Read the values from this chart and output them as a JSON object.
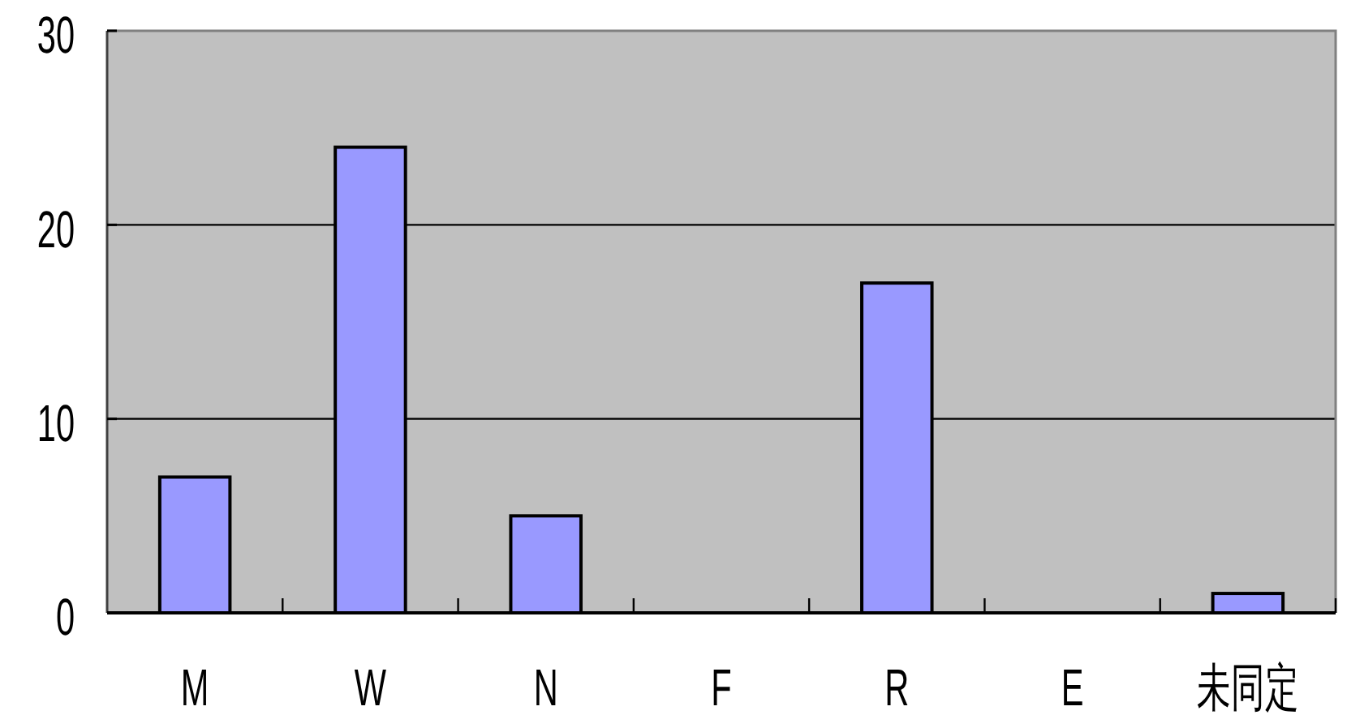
{
  "chart_data": {
    "type": "bar",
    "categories": [
      "M",
      "W",
      "N",
      "F",
      "R",
      "E",
      "未同定"
    ],
    "values": [
      7,
      24,
      5,
      0,
      17,
      0,
      1
    ],
    "color": "#9999ff",
    "ylim": [
      0,
      30
    ],
    "yticks": [
      0,
      10,
      20,
      30
    ],
    "grid": "y"
  }
}
